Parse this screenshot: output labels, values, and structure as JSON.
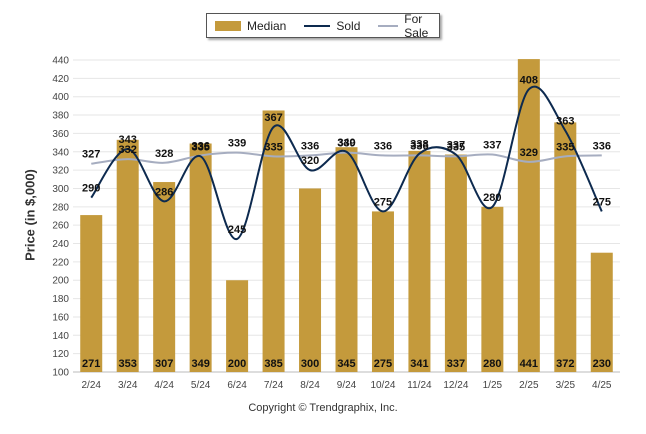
{
  "chart_data": {
    "type": "bar",
    "title": "",
    "ylabel": "Price (in $,000)",
    "xlabel": "",
    "ylim": [
      100,
      440
    ],
    "yticks": [
      100,
      120,
      140,
      160,
      180,
      200,
      220,
      240,
      260,
      280,
      300,
      320,
      340,
      360,
      380,
      400,
      420,
      440
    ],
    "categories": [
      "2/24",
      "3/24",
      "4/24",
      "5/24",
      "6/24",
      "7/24",
      "8/24",
      "9/24",
      "10/24",
      "11/24",
      "12/24",
      "1/25",
      "2/25",
      "3/25",
      "4/25"
    ],
    "series": [
      {
        "name": "Median",
        "type": "bar",
        "color": "#c49a3c",
        "values": [
          271,
          353,
          307,
          349,
          200,
          385,
          300,
          345,
          275,
          341,
          337,
          280,
          441,
          372,
          230
        ]
      },
      {
        "name": "Sold",
        "type": "line",
        "color": "#0d2a4f",
        "values": [
          290,
          343,
          286,
          335,
          245,
          367,
          320,
          340,
          275,
          338,
          337,
          280,
          408,
          363,
          275
        ]
      },
      {
        "name": "For Sale",
        "type": "line",
        "color": "#a6adc0",
        "values": [
          327,
          332,
          328,
          336,
          339,
          335,
          336,
          339,
          336,
          336,
          335,
          337,
          329,
          335,
          336
        ]
      }
    ],
    "legend_position": "top-center",
    "grid": true
  },
  "copyright": "Copyright © Trendgraphix, Inc."
}
